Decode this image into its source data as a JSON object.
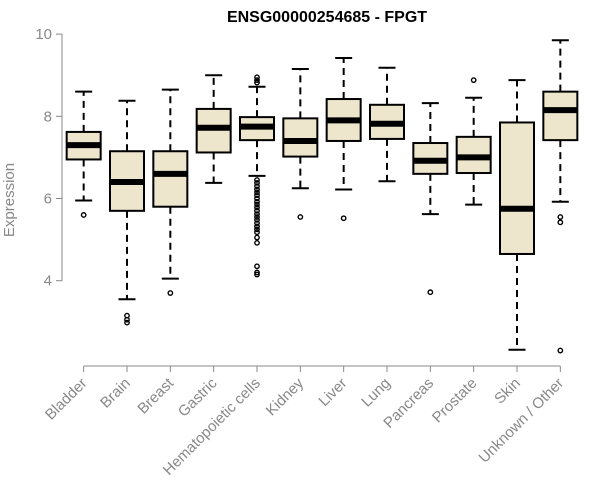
{
  "chart_data": {
    "type": "box",
    "title": "ENSG00000254685 - FPGT",
    "xlabel": "",
    "ylabel": "Expression",
    "ylim": [
      1.9,
      10.1
    ],
    "yticks": [
      4,
      6,
      8,
      10
    ],
    "box_fill": "#ede5cc",
    "categories": [
      "Bladder",
      "Brain",
      "Breast",
      "Gastric",
      "Hematopoietic cells",
      "Kidney",
      "Liver",
      "Lung",
      "Pancreas",
      "Prostate",
      "Skin",
      "Unknown / Other"
    ],
    "boxes": [
      {
        "category": "Bladder",
        "whisker_low": 5.95,
        "q1": 6.95,
        "median": 7.3,
        "q3": 7.62,
        "whisker_high": 8.6,
        "outliers": [
          5.6
        ]
      },
      {
        "category": "Brain",
        "whisker_low": 3.55,
        "q1": 5.7,
        "median": 6.4,
        "q3": 7.15,
        "whisker_high": 8.38,
        "outliers": [
          3.15,
          3.05,
          2.98
        ]
      },
      {
        "category": "Breast",
        "whisker_low": 4.05,
        "q1": 5.8,
        "median": 6.6,
        "q3": 7.15,
        "whisker_high": 8.65,
        "outliers": [
          3.7
        ]
      },
      {
        "category": "Gastric",
        "whisker_low": 6.38,
        "q1": 7.12,
        "median": 7.72,
        "q3": 8.18,
        "whisker_high": 9.0,
        "outliers": []
      },
      {
        "category": "Hematopoietic cells",
        "whisker_low": 6.55,
        "q1": 7.42,
        "median": 7.75,
        "q3": 7.98,
        "whisker_high": 8.72,
        "outliers": [
          8.95,
          8.88,
          8.82,
          6.45,
          6.38,
          6.3,
          6.22,
          6.15,
          6.08,
          6.0,
          5.92,
          5.85,
          5.78,
          5.7,
          5.62,
          5.55,
          5.48,
          5.4,
          5.32,
          5.25,
          5.18,
          5.05,
          4.92,
          4.35,
          4.2,
          4.15
        ]
      },
      {
        "category": "Kidney",
        "whisker_low": 6.25,
        "q1": 7.02,
        "median": 7.4,
        "q3": 7.95,
        "whisker_high": 9.15,
        "outliers": [
          5.55
        ]
      },
      {
        "category": "Liver",
        "whisker_low": 6.22,
        "q1": 7.4,
        "median": 7.9,
        "q3": 8.42,
        "whisker_high": 9.42,
        "outliers": [
          5.52
        ]
      },
      {
        "category": "Lung",
        "whisker_low": 6.42,
        "q1": 7.45,
        "median": 7.82,
        "q3": 8.28,
        "whisker_high": 9.18,
        "outliers": []
      },
      {
        "category": "Pancreas",
        "whisker_low": 5.62,
        "q1": 6.6,
        "median": 6.92,
        "q3": 7.35,
        "whisker_high": 8.32,
        "outliers": [
          3.72
        ]
      },
      {
        "category": "Prostate",
        "whisker_low": 5.85,
        "q1": 6.62,
        "median": 7.0,
        "q3": 7.5,
        "whisker_high": 8.45,
        "outliers": [
          8.88
        ]
      },
      {
        "category": "Skin",
        "whisker_low": 2.32,
        "q1": 4.65,
        "median": 5.75,
        "q3": 7.85,
        "whisker_high": 8.88,
        "outliers": []
      },
      {
        "category": "Unknown / Other",
        "whisker_low": 5.92,
        "q1": 7.42,
        "median": 8.15,
        "q3": 8.6,
        "whisker_high": 9.85,
        "outliers": [
          5.55,
          5.42,
          2.3
        ]
      }
    ]
  }
}
